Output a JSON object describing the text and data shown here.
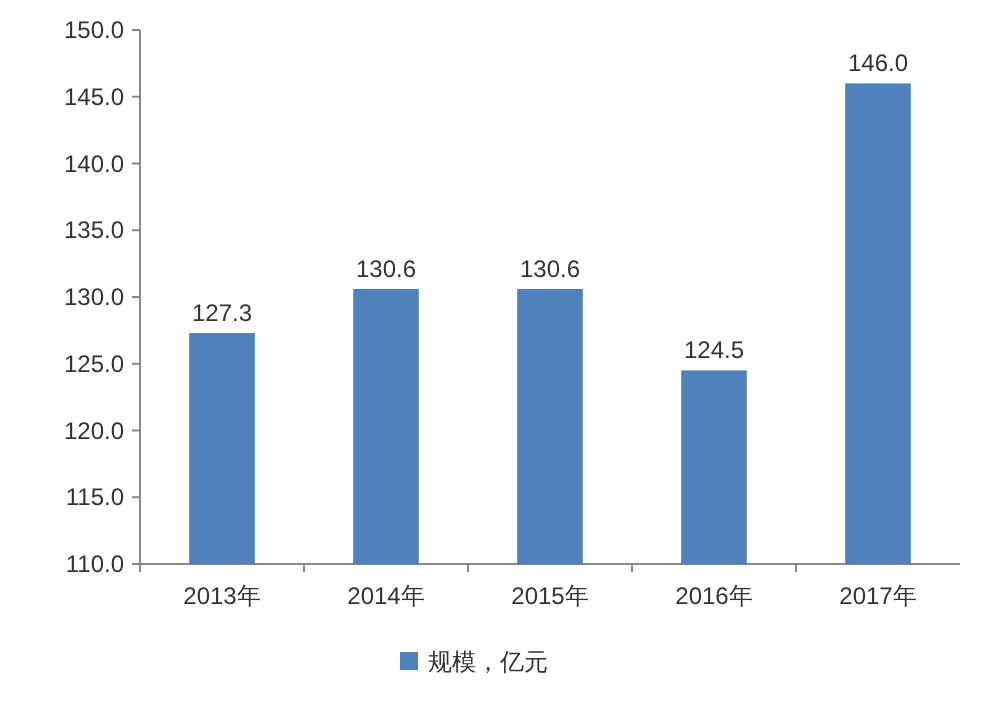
{
  "chart_data": {
    "type": "bar",
    "categories": [
      "2013年",
      "2014年",
      "2015年",
      "2016年",
      "2017年"
    ],
    "series": [
      {
        "name": "规模，亿元",
        "color": "#4f81bd",
        "values": [
          127.3,
          130.6,
          130.6,
          124.5,
          146.0
        ],
        "value_labels": [
          "127.3",
          "130.6",
          "130.6",
          "124.5",
          "146.0"
        ]
      }
    ],
    "ylim": [
      110,
      150
    ],
    "yticks": [
      {
        "value": 110,
        "label": "110.0"
      },
      {
        "value": 115,
        "label": "115.0"
      },
      {
        "value": 120,
        "label": "120.0"
      },
      {
        "value": 125,
        "label": "125.0"
      },
      {
        "value": 130,
        "label": "130.0"
      },
      {
        "value": 135,
        "label": "135.0"
      },
      {
        "value": 140,
        "label": "140.0"
      },
      {
        "value": 145,
        "label": "145.0"
      },
      {
        "value": 150,
        "label": "150.0"
      }
    ],
    "legend": "bottom",
    "grid": false
  }
}
